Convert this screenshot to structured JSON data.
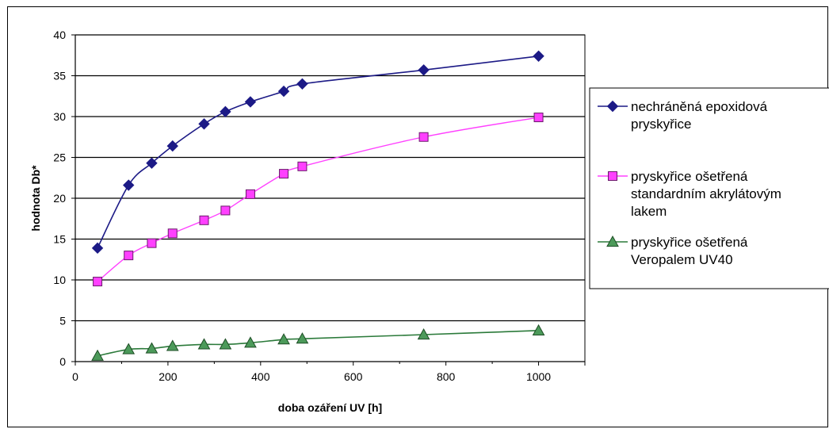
{
  "chart_data": {
    "type": "line",
    "xlabel": "doba ozáření UV [h]",
    "ylabel": "hodnota Db*",
    "xlim": [
      0,
      1100
    ],
    "ylim": [
      0,
      40
    ],
    "xticks": [
      0,
      200,
      400,
      600,
      800,
      1000
    ],
    "yticks": [
      0,
      5,
      10,
      15,
      20,
      25,
      30,
      35,
      40
    ],
    "grid": "horizontal",
    "legend_position": "right",
    "series": [
      {
        "name": "nechráněná epoxidová pryskyřice",
        "legend_lines": [
          "nechráněná epoxidová",
          "pryskyřice"
        ],
        "color": "#1c1a86",
        "marker": "diamond",
        "x": [
          48,
          115,
          165,
          210,
          278,
          324,
          378,
          450,
          490,
          752,
          1000
        ],
        "y": [
          13.9,
          21.6,
          24.3,
          26.4,
          29.1,
          30.6,
          31.8,
          33.1,
          34.0,
          35.7,
          37.4
        ]
      },
      {
        "name": "pryskyřice ošetřená standardním akrylátovým lakem",
        "legend_lines": [
          "pryskyřice ošetřená",
          "standardním akrylátovým",
          "lakem"
        ],
        "color": "#ff40ff",
        "marker": "square",
        "x": [
          48,
          115,
          165,
          210,
          278,
          324,
          378,
          450,
          490,
          752,
          1000
        ],
        "y": [
          9.8,
          13.0,
          14.5,
          15.7,
          17.3,
          18.5,
          20.5,
          23.0,
          23.9,
          27.5,
          29.9
        ]
      },
      {
        "name": "pryskyřice ošetřená Veropalem UV40",
        "legend_lines": [
          "pryskyřice ošetřená",
          "Veropalem UV40"
        ],
        "color": "#2b7a3a",
        "marker": "triangle",
        "x": [
          48,
          115,
          165,
          210,
          278,
          324,
          378,
          450,
          490,
          752,
          1000
        ],
        "y": [
          0.7,
          1.5,
          1.6,
          1.9,
          2.1,
          2.1,
          2.3,
          2.7,
          2.8,
          3.3,
          3.8
        ]
      }
    ]
  },
  "colors": {
    "series_1_fill": "#1c1a86",
    "series_2_fill": "#ff40ff",
    "series_3_fill": "#4c9a5a",
    "series_3_line": "#2b7a3a"
  }
}
